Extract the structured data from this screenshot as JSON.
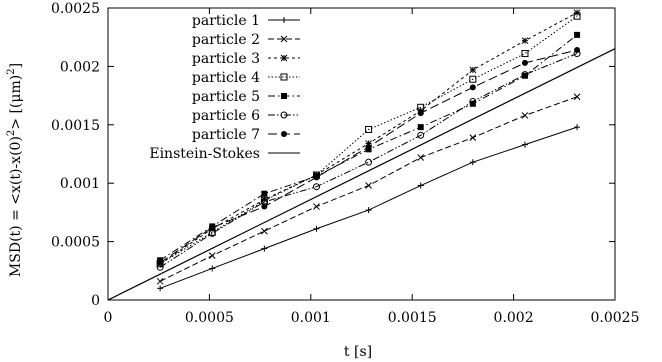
{
  "chart_data": {
    "type": "line",
    "xlabel": "t [s]",
    "ylabel": "MSD(t) = <x(t)-x(0)",
    "ylabel_superscript": "2",
    "ylabel_unit": "> [(μm)",
    "ylabel_unit_superscript": "2",
    "ylabel_close": "]",
    "xlim": [
      0,
      0.0025
    ],
    "ylim": [
      0,
      0.0025
    ],
    "xticks": [
      0,
      0.0005,
      0.001,
      0.0015,
      0.002,
      0.0025
    ],
    "xtick_labels": [
      "0",
      "0.0005",
      "0.001",
      "0.0015",
      "0.002",
      "0.0025"
    ],
    "yticks": [
      0,
      0.0005,
      0.001,
      0.0015,
      0.002,
      0.0025
    ],
    "ytick_labels": [
      "0",
      "0.0005",
      "0.001",
      "0.0015",
      "0.002",
      "0.0025"
    ],
    "grid": false,
    "legend_position": "top-left",
    "x": [
      0.000257,
      0.000514,
      0.000771,
      0.001028,
      0.001285,
      0.001542,
      0.001799,
      0.002056,
      0.002313
    ],
    "series": [
      {
        "name": "particle 1",
        "marker": "plus",
        "dash": "solid",
        "values": [
          0.0001,
          0.00027,
          0.00044,
          0.00061,
          0.00077,
          0.00098,
          0.00118,
          0.00133,
          0.00148
        ]
      },
      {
        "name": "particle 2",
        "marker": "cross",
        "dash": "dashed",
        "values": [
          0.00016,
          0.00038,
          0.00059,
          0.0008,
          0.00098,
          0.00122,
          0.00139,
          0.00158,
          0.00174
        ]
      },
      {
        "name": "particle 3",
        "marker": "star",
        "dash": "shortdash",
        "values": [
          0.00031,
          0.00061,
          0.00086,
          0.00107,
          0.00134,
          0.00162,
          0.00197,
          0.00222,
          0.00246
        ]
      },
      {
        "name": "particle 4",
        "marker": "open-square",
        "dash": "dotted",
        "values": [
          0.00031,
          0.00058,
          0.00085,
          0.00107,
          0.00146,
          0.00165,
          0.00189,
          0.00211,
          0.00243
        ]
      },
      {
        "name": "particle 5",
        "marker": "filled-square",
        "dash": "dashdot",
        "values": [
          0.00034,
          0.00063,
          0.00091,
          0.00106,
          0.00129,
          0.00148,
          0.00168,
          0.00192,
          0.00227
        ]
      },
      {
        "name": "particle 6",
        "marker": "open-circle",
        "dash": "dashdotdot",
        "values": [
          0.00028,
          0.00057,
          0.00084,
          0.00097,
          0.00118,
          0.00141,
          0.0017,
          0.00193,
          0.00211
        ]
      },
      {
        "name": "particle 7",
        "marker": "filled-circle",
        "dash": "longdash",
        "values": [
          0.00032,
          0.00062,
          0.0008,
          0.00105,
          0.00131,
          0.0016,
          0.00182,
          0.00203,
          0.00214
        ]
      }
    ],
    "reference_line": {
      "name": "Einstein-Stokes",
      "dash": "solid",
      "x": [
        0,
        0.0025
      ],
      "y": [
        0,
        0.002152
      ]
    }
  }
}
